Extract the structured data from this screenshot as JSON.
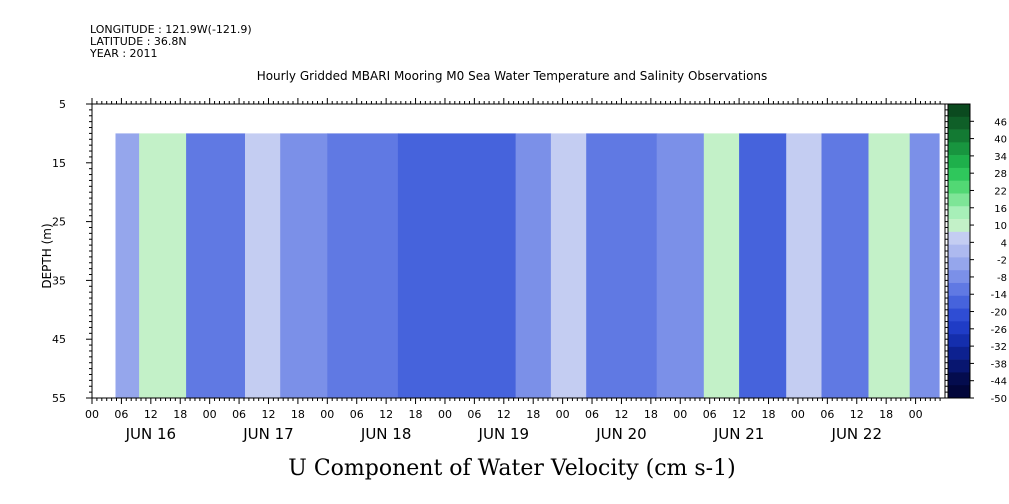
{
  "header": {
    "longitude": "LONGITUDE : 121.9W(-121.9)",
    "latitude": "LATITUDE : 36.8N",
    "year": "YEAR : 2011",
    "title": "Hourly Gridded MBARI Mooring M0 Sea Water Temperature and Salinity Observations"
  },
  "chart_data": {
    "type": "heatmap",
    "title": "Hourly Gridded MBARI Mooring M0 Sea Water Temperature and Salinity Observations",
    "xlabel": "U Component of Water Velocity (cm s-1)",
    "ylabel": "DEPTH (m)",
    "y_range": [
      5,
      55
    ],
    "y_ticks": [
      "5",
      "15",
      "25",
      "35",
      "45",
      "55"
    ],
    "y_tick_values": [
      5,
      15,
      25,
      35,
      45,
      55
    ],
    "x_hour_ticks": [
      "00",
      "06",
      "12",
      "18",
      "00",
      "06",
      "12",
      "18",
      "00",
      "06",
      "12",
      "18",
      "00",
      "06",
      "12",
      "18",
      "00",
      "06",
      "12",
      "18",
      "00",
      "06",
      "12",
      "18",
      "00",
      "06",
      "12",
      "18",
      "00"
    ],
    "x_day_labels": [
      "JUN 16",
      "JUN 17",
      "JUN 18",
      "JUN 19",
      "JUN 20",
      "JUN 21",
      "JUN 22"
    ],
    "data_depth_range": [
      10,
      55
    ],
    "colorbar_labels": [
      "46",
      "40",
      "34",
      "28",
      "22",
      "16",
      "10",
      "4",
      "-2",
      "-8",
      "-14",
      "-20",
      "-26",
      "-32",
      "-38",
      "-44",
      "-50"
    ],
    "colorbar_range": [
      -50,
      52
    ],
    "colorbar_colors": [
      "#0b4a1f",
      "#0f5f28",
      "#137a33",
      "#18953f",
      "#1eb04b",
      "#2fc75c",
      "#52d874",
      "#7ee597",
      "#a7efb8",
      "#c3f1c8",
      "#c4cdf2",
      "#adb9ef",
      "#95a6ec",
      "#7b90e8",
      "#6079e3",
      "#4663dc",
      "#2f4dd4",
      "#1f3cc6",
      "#142ead",
      "#0d2190",
      "#081670",
      "#040c4e",
      "#02063a"
    ],
    "velocity_bands": [
      {
        "start": 0.2,
        "end": 0.4,
        "u": -4
      },
      {
        "start": 0.4,
        "end": 0.8,
        "u": 10
      },
      {
        "start": 0.8,
        "end": 1.3,
        "u": -12
      },
      {
        "start": 1.3,
        "end": 1.6,
        "u": 6
      },
      {
        "start": 1.6,
        "end": 2.0,
        "u": -8
      },
      {
        "start": 2.0,
        "end": 2.6,
        "u": -14
      },
      {
        "start": 2.6,
        "end": 3.6,
        "u": -18
      },
      {
        "start": 3.6,
        "end": 3.9,
        "u": -6
      },
      {
        "start": 3.9,
        "end": 4.2,
        "u": 6
      },
      {
        "start": 4.2,
        "end": 4.8,
        "u": -12
      },
      {
        "start": 4.8,
        "end": 5.2,
        "u": -6
      },
      {
        "start": 5.2,
        "end": 5.5,
        "u": 10
      },
      {
        "start": 5.5,
        "end": 5.9,
        "u": -16
      },
      {
        "start": 5.9,
        "end": 6.2,
        "u": 6
      },
      {
        "start": 6.2,
        "end": 6.6,
        "u": -14
      },
      {
        "start": 6.6,
        "end": 6.95,
        "u": 8
      },
      {
        "start": 6.95,
        "end": 7.2,
        "u": -10
      }
    ]
  }
}
